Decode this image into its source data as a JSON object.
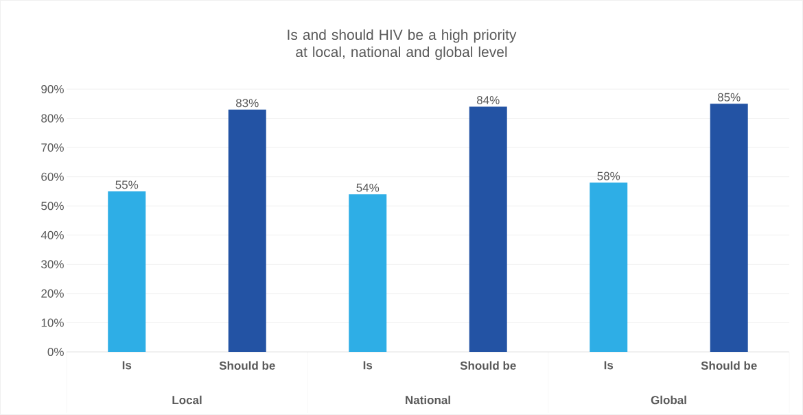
{
  "chart_data": {
    "type": "bar",
    "title": "Is and should HIV be a high priority at local, national and global level",
    "categories": [
      "Is",
      "Should be",
      "Is",
      "Should be",
      "Is",
      "Should be"
    ],
    "values": [
      55,
      83,
      54,
      84,
      58,
      85
    ],
    "colors": [
      "#2eaee6",
      "#2353a4",
      "#2eaee6",
      "#2353a4",
      "#2eaee6",
      "#2353a4"
    ],
    "value_labels": [
      "55%",
      "83%",
      "54%",
      "84%",
      "58%",
      "85%"
    ],
    "annotations": [
      "Local",
      "National",
      "Global"
    ],
    "ylim": [
      0,
      90
    ],
    "yticks": [
      {
        "value": 0,
        "label": "0%"
      },
      {
        "value": 10,
        "label": "10%"
      },
      {
        "value": 20,
        "label": "20%"
      },
      {
        "value": 30,
        "label": "30%"
      },
      {
        "value": 40,
        "label": "40%"
      },
      {
        "value": 50,
        "label": "50%"
      },
      {
        "value": 60,
        "label": "60%"
      },
      {
        "value": 70,
        "label": "70%"
      },
      {
        "value": 80,
        "label": "80%"
      },
      {
        "value": 90,
        "label": "90%"
      }
    ],
    "grid": "y"
  }
}
